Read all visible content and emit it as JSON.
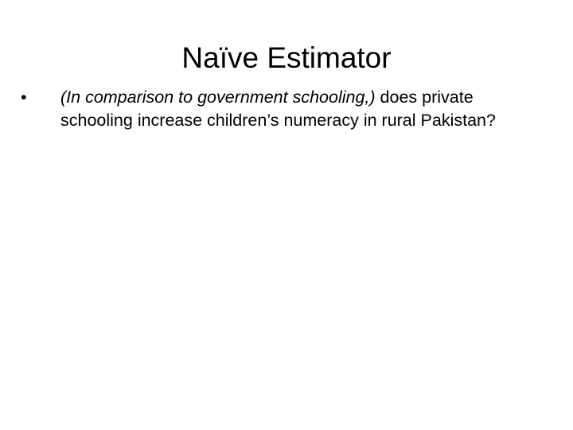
{
  "slide": {
    "title": "Naïve Estimator",
    "bullets": [
      {
        "marker": "•",
        "italic_part": "(In comparison to government schooling,)",
        "normal_part": " does private schooling increase children’s numeracy in rural Pakistan?"
      }
    ]
  }
}
